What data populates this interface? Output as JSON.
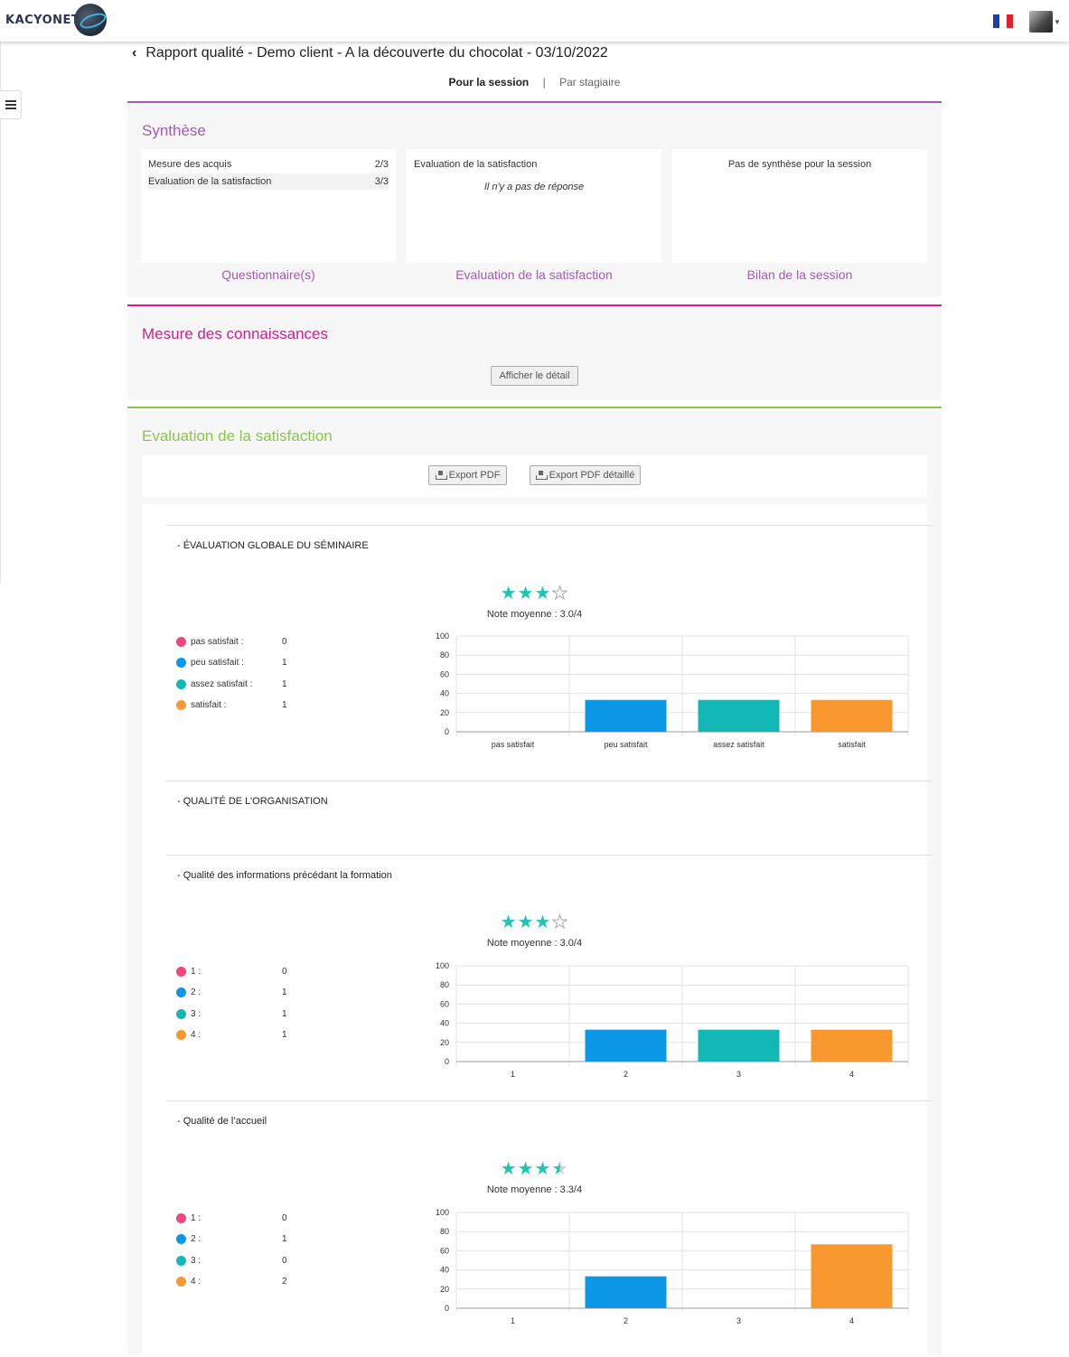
{
  "header": {
    "logo_text": "KACYONET",
    "title": "Rapport qualité - Demo client - A la découverte du chocolat - 03/10/2022",
    "tabs": [
      {
        "label": "Pour la session"
      },
      {
        "label": "Par stagiaire"
      }
    ],
    "tab_separator": "|"
  },
  "colors": {
    "synthese": "#a35ab5",
    "connaissances": "#d01e8c",
    "satisfaction": "#8ac64a",
    "red": "#f0467c",
    "blue": "#0c98e6",
    "teal": "#12b8b6",
    "orange": "#fa9830",
    "stars": "#1cc6b4"
  },
  "synthese": {
    "title": "Synthèse",
    "box1": {
      "rows": [
        {
          "label": "Mesure des acquis",
          "value": "2/3"
        },
        {
          "label": "Evaluation de la satisfaction",
          "value": "3/3"
        }
      ],
      "link": "Questionnaire(s)"
    },
    "box2": {
      "heading": "Evaluation de la satisfaction",
      "empty": "Il n'y a pas de réponse",
      "link": "Evaluation de la satisfaction"
    },
    "box3": {
      "heading": "Pas de synthèse pour la session",
      "link": "Bilan de la session"
    }
  },
  "connaissances": {
    "title": "Mesure des connaissances",
    "button": "Afficher le détail"
  },
  "satisfaction": {
    "title": "Evaluation de la satisfaction",
    "export_pdf": "Export PDF",
    "export_pdf_detail": "Export PDF détaillé",
    "questions": [
      {
        "title": "- ÉVALUATION GLOBALE DU SÉMINAIRE",
        "stars": 3.0,
        "avg": "Note moyenne : 3.0/4",
        "legend": [
          {
            "label": "pas satisfait :",
            "value": "0"
          },
          {
            "label": "peu satisfait :",
            "value": "1"
          },
          {
            "label": "assez satisfait :",
            "value": "1"
          },
          {
            "label": "satisfait :",
            "value": "1"
          }
        ]
      },
      {
        "title": "- QUALITÉ DE L’ORGANISATION"
      },
      {
        "title": "- Qualité des informations précédant la formation",
        "stars": 3.0,
        "avg": "Note moyenne : 3.0/4",
        "legend": [
          {
            "label": "1 :",
            "value": "0"
          },
          {
            "label": "2 :",
            "value": "1"
          },
          {
            "label": "3 :",
            "value": "1"
          },
          {
            "label": "4 :",
            "value": "1"
          }
        ]
      },
      {
        "title": "- Qualité de l’accueil",
        "stars": 3.3,
        "avg": "Note moyenne : 3.3/4",
        "legend": [
          {
            "label": "1 :",
            "value": "0"
          },
          {
            "label": "2 :",
            "value": "1"
          },
          {
            "label": "3 :",
            "value": "0"
          },
          {
            "label": "4 :",
            "value": "2"
          }
        ]
      }
    ]
  },
  "chart_data": [
    {
      "type": "bar",
      "categories": [
        "pas satisfait",
        "peu satisfait",
        "assez satisfait",
        "satisfait"
      ],
      "values": [
        0,
        33.3,
        33.3,
        33.3
      ],
      "colors": [
        "#f0467c",
        "#0c98e6",
        "#12b8b6",
        "#fa9830"
      ],
      "yticks": [
        "0",
        "20",
        "40",
        "60",
        "80",
        "100"
      ],
      "ylim": [
        0,
        100
      ],
      "grid": true
    },
    {
      "type": "bar",
      "categories": [
        "1",
        "2",
        "3",
        "4"
      ],
      "values": [
        0,
        33.3,
        33.3,
        33.3
      ],
      "colors": [
        "#f0467c",
        "#0c98e6",
        "#12b8b6",
        "#fa9830"
      ],
      "yticks": [
        "0",
        "20",
        "40",
        "60",
        "80",
        "100"
      ],
      "ylim": [
        0,
        100
      ],
      "grid": true
    },
    {
      "type": "bar",
      "categories": [
        "1",
        "2",
        "3",
        "4"
      ],
      "values": [
        0,
        33.3,
        0,
        66.7
      ],
      "colors": [
        "#f0467c",
        "#0c98e6",
        "#12b8b6",
        "#fa9830"
      ],
      "yticks": [
        "0",
        "20",
        "40",
        "60",
        "80",
        "100"
      ],
      "ylim": [
        0,
        100
      ],
      "grid": true
    }
  ]
}
